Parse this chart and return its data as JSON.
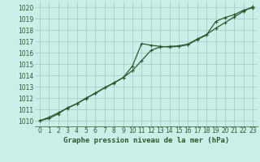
{
  "title": "Graphe pression niveau de la mer (hPa)",
  "background_color": "#cceee8",
  "grid_color": "#aacccc",
  "line_color": "#2d5a2d",
  "xlim": [
    -0.5,
    23.5
  ],
  "ylim": [
    1009.5,
    1020.5
  ],
  "xticks": [
    0,
    1,
    2,
    3,
    4,
    5,
    6,
    7,
    8,
    9,
    10,
    11,
    12,
    13,
    14,
    15,
    16,
    17,
    18,
    19,
    20,
    21,
    22,
    23
  ],
  "yticks": [
    1010,
    1011,
    1012,
    1013,
    1014,
    1015,
    1016,
    1017,
    1018,
    1019,
    1020
  ],
  "line1_x": [
    0,
    1,
    2,
    3,
    4,
    5,
    6,
    7,
    8,
    9,
    10,
    11,
    12,
    13,
    14,
    15,
    16,
    17,
    18,
    19,
    20,
    21,
    22,
    23
  ],
  "line1_y": [
    1010.0,
    1010.3,
    1010.7,
    1011.1,
    1011.5,
    1012.0,
    1012.4,
    1012.9,
    1013.3,
    1013.8,
    1014.8,
    1016.8,
    1016.65,
    1016.55,
    1016.5,
    1016.55,
    1016.7,
    1017.15,
    1017.55,
    1018.75,
    1019.1,
    1019.35,
    1019.75,
    1019.95
  ],
  "line2_x": [
    0,
    1,
    2,
    3,
    4,
    5,
    6,
    7,
    8,
    9,
    10,
    11,
    12,
    13,
    14,
    15,
    16,
    17,
    18,
    19,
    20,
    21,
    22,
    23
  ],
  "line2_y": [
    1010.0,
    1010.2,
    1010.6,
    1011.15,
    1011.5,
    1011.95,
    1012.45,
    1012.9,
    1013.35,
    1013.8,
    1014.4,
    1015.3,
    1016.2,
    1016.5,
    1016.55,
    1016.6,
    1016.75,
    1017.2,
    1017.6,
    1018.15,
    1018.65,
    1019.15,
    1019.65,
    1020.05
  ],
  "tick_fontsize": 5.5,
  "label_fontsize": 6.5,
  "linewidth": 0.9,
  "markersize": 3.5
}
